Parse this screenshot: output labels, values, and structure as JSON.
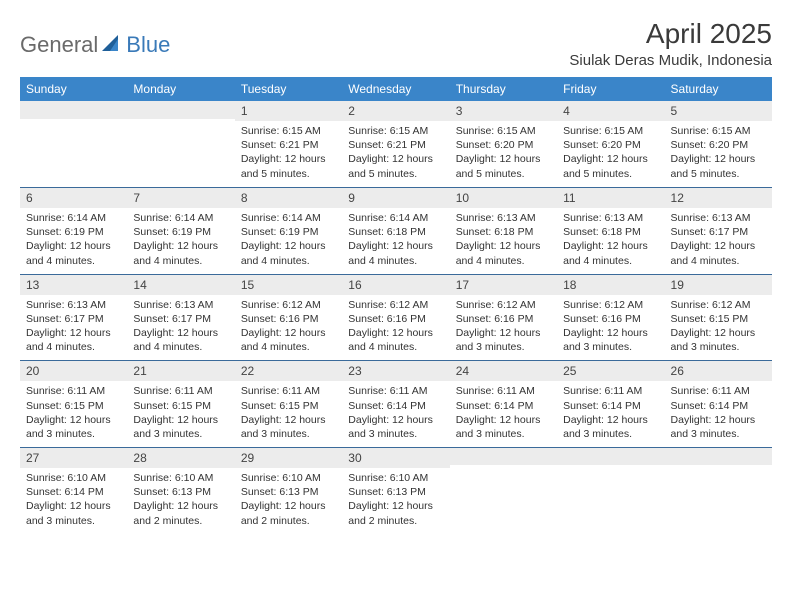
{
  "logo": {
    "text1": "General",
    "text2": "Blue"
  },
  "title": "April 2025",
  "location": "Siulak Deras Mudik, Indonesia",
  "colors": {
    "header_bg": "#3a85c9",
    "header_text": "#ffffff",
    "daynum_bg": "#ececec",
    "row_divider": "#3a6a9a",
    "logo_gray": "#6a6a6a",
    "logo_blue": "#3a7ab8",
    "text": "#333333"
  },
  "days_of_week": [
    "Sunday",
    "Monday",
    "Tuesday",
    "Wednesday",
    "Thursday",
    "Friday",
    "Saturday"
  ],
  "weeks": [
    [
      {
        "n": "",
        "sr": "",
        "ss": "",
        "dl": ""
      },
      {
        "n": "",
        "sr": "",
        "ss": "",
        "dl": ""
      },
      {
        "n": "1",
        "sr": "Sunrise: 6:15 AM",
        "ss": "Sunset: 6:21 PM",
        "dl": "Daylight: 12 hours and 5 minutes."
      },
      {
        "n": "2",
        "sr": "Sunrise: 6:15 AM",
        "ss": "Sunset: 6:21 PM",
        "dl": "Daylight: 12 hours and 5 minutes."
      },
      {
        "n": "3",
        "sr": "Sunrise: 6:15 AM",
        "ss": "Sunset: 6:20 PM",
        "dl": "Daylight: 12 hours and 5 minutes."
      },
      {
        "n": "4",
        "sr": "Sunrise: 6:15 AM",
        "ss": "Sunset: 6:20 PM",
        "dl": "Daylight: 12 hours and 5 minutes."
      },
      {
        "n": "5",
        "sr": "Sunrise: 6:15 AM",
        "ss": "Sunset: 6:20 PM",
        "dl": "Daylight: 12 hours and 5 minutes."
      }
    ],
    [
      {
        "n": "6",
        "sr": "Sunrise: 6:14 AM",
        "ss": "Sunset: 6:19 PM",
        "dl": "Daylight: 12 hours and 4 minutes."
      },
      {
        "n": "7",
        "sr": "Sunrise: 6:14 AM",
        "ss": "Sunset: 6:19 PM",
        "dl": "Daylight: 12 hours and 4 minutes."
      },
      {
        "n": "8",
        "sr": "Sunrise: 6:14 AM",
        "ss": "Sunset: 6:19 PM",
        "dl": "Daylight: 12 hours and 4 minutes."
      },
      {
        "n": "9",
        "sr": "Sunrise: 6:14 AM",
        "ss": "Sunset: 6:18 PM",
        "dl": "Daylight: 12 hours and 4 minutes."
      },
      {
        "n": "10",
        "sr": "Sunrise: 6:13 AM",
        "ss": "Sunset: 6:18 PM",
        "dl": "Daylight: 12 hours and 4 minutes."
      },
      {
        "n": "11",
        "sr": "Sunrise: 6:13 AM",
        "ss": "Sunset: 6:18 PM",
        "dl": "Daylight: 12 hours and 4 minutes."
      },
      {
        "n": "12",
        "sr": "Sunrise: 6:13 AM",
        "ss": "Sunset: 6:17 PM",
        "dl": "Daylight: 12 hours and 4 minutes."
      }
    ],
    [
      {
        "n": "13",
        "sr": "Sunrise: 6:13 AM",
        "ss": "Sunset: 6:17 PM",
        "dl": "Daylight: 12 hours and 4 minutes."
      },
      {
        "n": "14",
        "sr": "Sunrise: 6:13 AM",
        "ss": "Sunset: 6:17 PM",
        "dl": "Daylight: 12 hours and 4 minutes."
      },
      {
        "n": "15",
        "sr": "Sunrise: 6:12 AM",
        "ss": "Sunset: 6:16 PM",
        "dl": "Daylight: 12 hours and 4 minutes."
      },
      {
        "n": "16",
        "sr": "Sunrise: 6:12 AM",
        "ss": "Sunset: 6:16 PM",
        "dl": "Daylight: 12 hours and 4 minutes."
      },
      {
        "n": "17",
        "sr": "Sunrise: 6:12 AM",
        "ss": "Sunset: 6:16 PM",
        "dl": "Daylight: 12 hours and 3 minutes."
      },
      {
        "n": "18",
        "sr": "Sunrise: 6:12 AM",
        "ss": "Sunset: 6:16 PM",
        "dl": "Daylight: 12 hours and 3 minutes."
      },
      {
        "n": "19",
        "sr": "Sunrise: 6:12 AM",
        "ss": "Sunset: 6:15 PM",
        "dl": "Daylight: 12 hours and 3 minutes."
      }
    ],
    [
      {
        "n": "20",
        "sr": "Sunrise: 6:11 AM",
        "ss": "Sunset: 6:15 PM",
        "dl": "Daylight: 12 hours and 3 minutes."
      },
      {
        "n": "21",
        "sr": "Sunrise: 6:11 AM",
        "ss": "Sunset: 6:15 PM",
        "dl": "Daylight: 12 hours and 3 minutes."
      },
      {
        "n": "22",
        "sr": "Sunrise: 6:11 AM",
        "ss": "Sunset: 6:15 PM",
        "dl": "Daylight: 12 hours and 3 minutes."
      },
      {
        "n": "23",
        "sr": "Sunrise: 6:11 AM",
        "ss": "Sunset: 6:14 PM",
        "dl": "Daylight: 12 hours and 3 minutes."
      },
      {
        "n": "24",
        "sr": "Sunrise: 6:11 AM",
        "ss": "Sunset: 6:14 PM",
        "dl": "Daylight: 12 hours and 3 minutes."
      },
      {
        "n": "25",
        "sr": "Sunrise: 6:11 AM",
        "ss": "Sunset: 6:14 PM",
        "dl": "Daylight: 12 hours and 3 minutes."
      },
      {
        "n": "26",
        "sr": "Sunrise: 6:11 AM",
        "ss": "Sunset: 6:14 PM",
        "dl": "Daylight: 12 hours and 3 minutes."
      }
    ],
    [
      {
        "n": "27",
        "sr": "Sunrise: 6:10 AM",
        "ss": "Sunset: 6:14 PM",
        "dl": "Daylight: 12 hours and 3 minutes."
      },
      {
        "n": "28",
        "sr": "Sunrise: 6:10 AM",
        "ss": "Sunset: 6:13 PM",
        "dl": "Daylight: 12 hours and 2 minutes."
      },
      {
        "n": "29",
        "sr": "Sunrise: 6:10 AM",
        "ss": "Sunset: 6:13 PM",
        "dl": "Daylight: 12 hours and 2 minutes."
      },
      {
        "n": "30",
        "sr": "Sunrise: 6:10 AM",
        "ss": "Sunset: 6:13 PM",
        "dl": "Daylight: 12 hours and 2 minutes."
      },
      {
        "n": "",
        "sr": "",
        "ss": "",
        "dl": ""
      },
      {
        "n": "",
        "sr": "",
        "ss": "",
        "dl": ""
      },
      {
        "n": "",
        "sr": "",
        "ss": "",
        "dl": ""
      }
    ]
  ]
}
